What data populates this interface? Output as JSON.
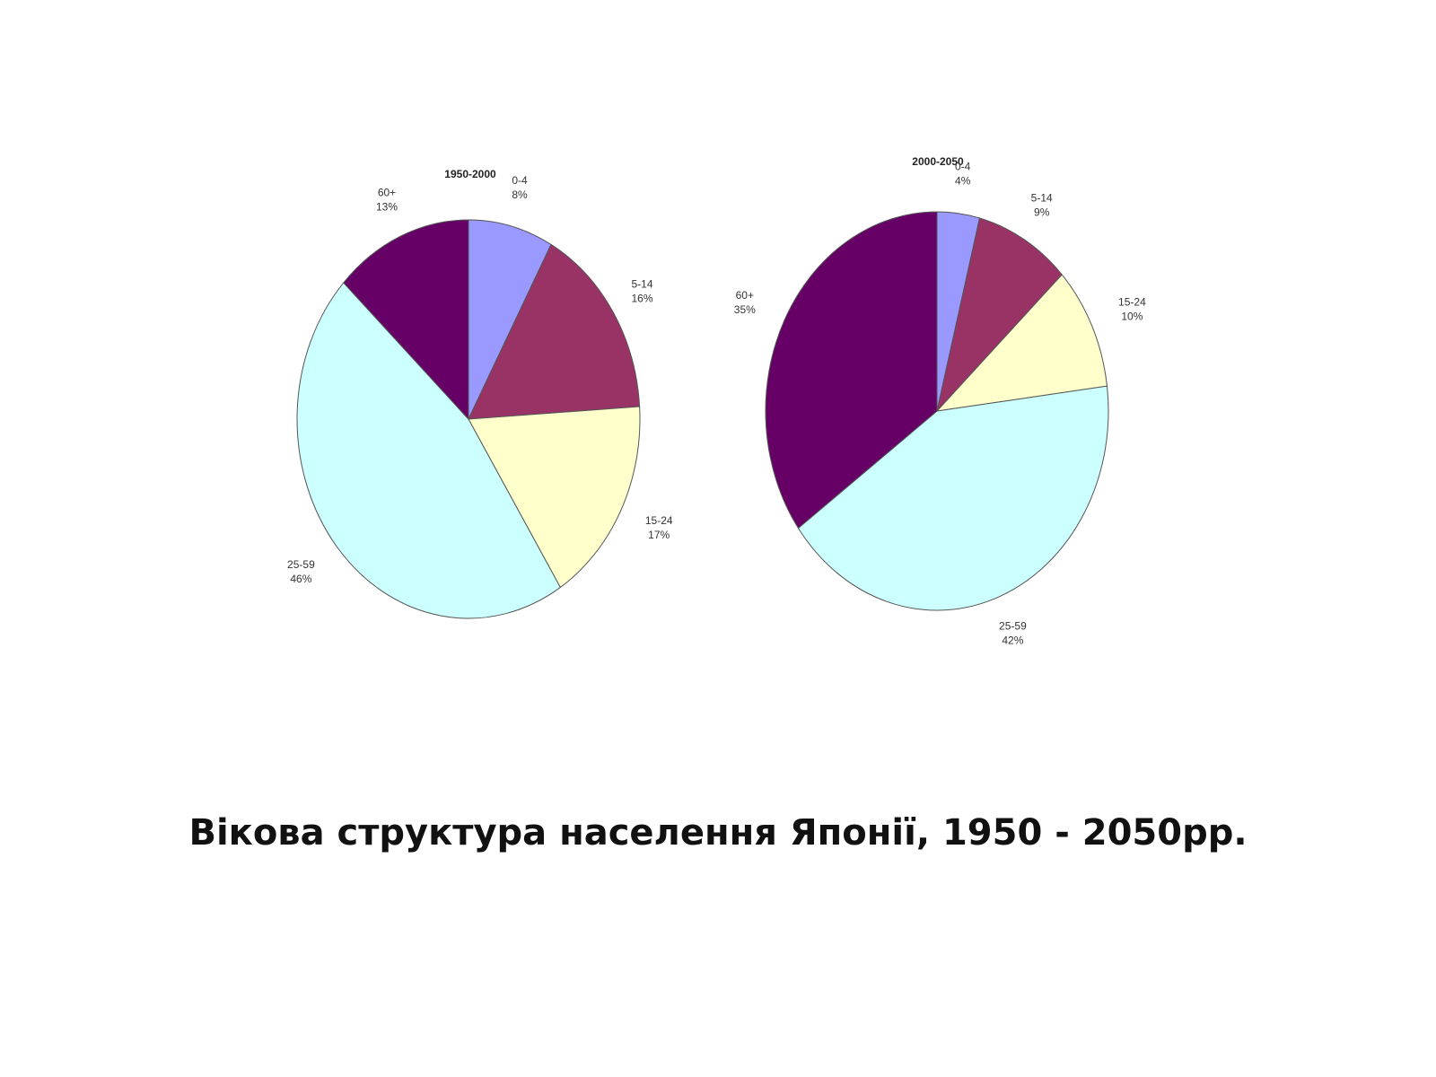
{
  "caption": "Вікова структура населення Японії, 1950 - 2050рр.",
  "colors": {
    "0-4": "#9999ff",
    "5-14": "#993366",
    "15-24": "#ffffcc",
    "25-59": "#ccffff",
    "60+": "#660066",
    "stroke": "#555555"
  },
  "chart_data": [
    {
      "type": "pie",
      "title": "1950-2000",
      "slices": [
        {
          "label": "0-4",
          "value": 8,
          "value_label": "8%"
        },
        {
          "label": "5-14",
          "value": 16,
          "value_label": "16%"
        },
        {
          "label": "15-24",
          "value": 17,
          "value_label": "17%"
        },
        {
          "label": "25-59",
          "value": 46,
          "value_label": "46%"
        },
        {
          "label": "60+",
          "value": 13,
          "value_label": "13%"
        }
      ]
    },
    {
      "type": "pie",
      "title": "2000-2050",
      "slices": [
        {
          "label": "0-4",
          "value": 4,
          "value_label": "4%"
        },
        {
          "label": "5-14",
          "value": 9,
          "value_label": "9%"
        },
        {
          "label": "15-24",
          "value": 10,
          "value_label": "10%"
        },
        {
          "label": "25-59",
          "value": 42,
          "value_label": "42%"
        },
        {
          "label": "60+",
          "value": 35,
          "value_label": "35%"
        }
      ]
    }
  ]
}
